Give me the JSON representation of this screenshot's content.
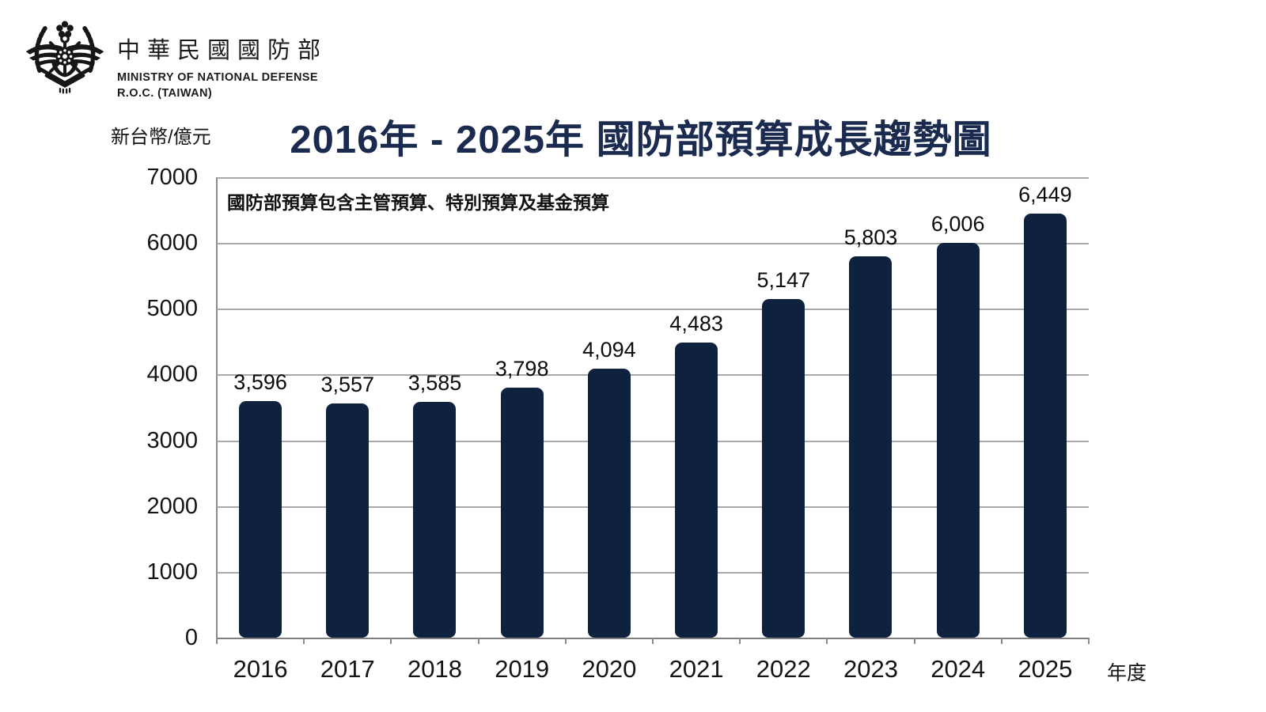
{
  "header": {
    "emblem_icon": "mnd-roc-emblem",
    "org_name_zh": "中華民國國防部",
    "org_name_en_line1": "MINISTRY OF NATIONAL DEFENSE",
    "org_name_en_line2": "R.O.C. (TAIWAN)"
  },
  "chart_data": {
    "type": "bar",
    "title": "2016年 - 2025年 國防部預算成長趨勢圖",
    "unit_label": "新台幣/億元",
    "annotation": "國防部預算包含主管預算、特別預算及基金預算",
    "xlabel": "年度",
    "categories": [
      "2016",
      "2017",
      "2018",
      "2019",
      "2020",
      "2021",
      "2022",
      "2023",
      "2024",
      "2025"
    ],
    "values": [
      3596,
      3557,
      3585,
      3798,
      4094,
      4483,
      5147,
      5803,
      6006,
      6449
    ],
    "value_labels": [
      "3,596",
      "3,557",
      "3,585",
      "3,798",
      "4,094",
      "4,483",
      "5,147",
      "5,803",
      "6,006",
      "6,449"
    ],
    "y_ticks": [
      0,
      1000,
      2000,
      3000,
      4000,
      5000,
      6000,
      7000
    ],
    "ylim": [
      0,
      7000
    ],
    "grid": true,
    "legend": null,
    "colors": {
      "bar": "#0e223f",
      "title": "#1b2a4f",
      "gridline": "#a8a8a8",
      "axis": "#8a8a8a",
      "text": "#141414"
    }
  }
}
